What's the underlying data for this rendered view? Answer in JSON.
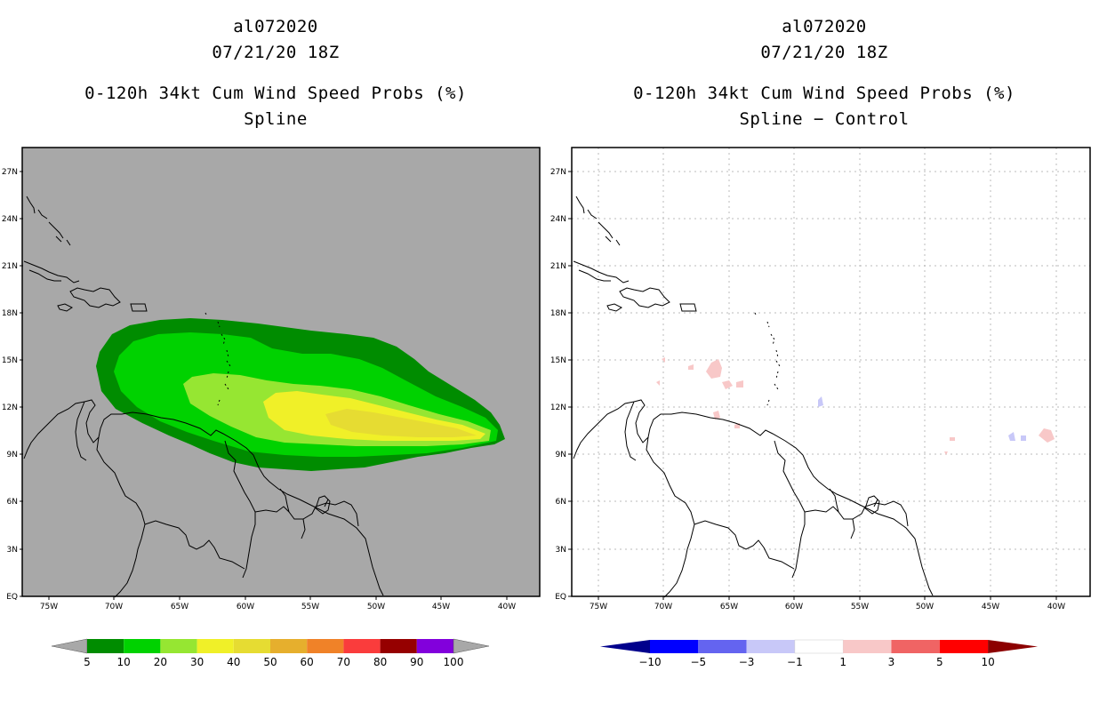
{
  "left_panel": {
    "storm_id": "al072020",
    "datetime": "07/21/20 18Z",
    "product": "0-120h 34kt Cum Wind Speed Probs (%)",
    "subtitle": "Spline",
    "background_color": "#a8a8a8"
  },
  "right_panel": {
    "storm_id": "al072020",
    "datetime": "07/21/20 18Z",
    "product": "0-120h 34kt Cum Wind Speed Probs (%)",
    "subtitle": "Spline − Control",
    "background_color": "#ffffff"
  },
  "axes": {
    "lat_labels": [
      "27N",
      "24N",
      "21N",
      "18N",
      "15N",
      "12N",
      "9N",
      "6N",
      "3N",
      "EQ"
    ],
    "lon_labels_left": [
      "75W",
      "70W",
      "65W",
      "60W",
      "55W",
      "50W",
      "45W",
      "40W"
    ],
    "lon_labels_right": [
      "75W",
      "70W",
      "65W",
      "60W",
      "55W",
      "50W",
      "45W",
      "40W"
    ]
  },
  "colorbar_left": {
    "labels": [
      "5",
      "10",
      "20",
      "30",
      "40",
      "50",
      "60",
      "70",
      "80",
      "90",
      "100"
    ],
    "colors": [
      "#008c00",
      "#00d200",
      "#96e632",
      "#f0f028",
      "#e6dc32",
      "#e6af2d",
      "#f08228",
      "#fa3c3c",
      "#960000",
      "#8200dc"
    ],
    "extend_color": "#a8a8a8"
  },
  "colorbar_right": {
    "labels": [
      "−10",
      "−5",
      "−3",
      "−1",
      "1",
      "3",
      "5",
      "10"
    ],
    "colors": [
      "#0000ff",
      "#6464f0",
      "#c8c8f8",
      "#ffffff",
      "#f8c8c8",
      "#f06464",
      "#ff0000"
    ],
    "low_extend": "#00008c",
    "high_extend": "#8c0000"
  }
}
